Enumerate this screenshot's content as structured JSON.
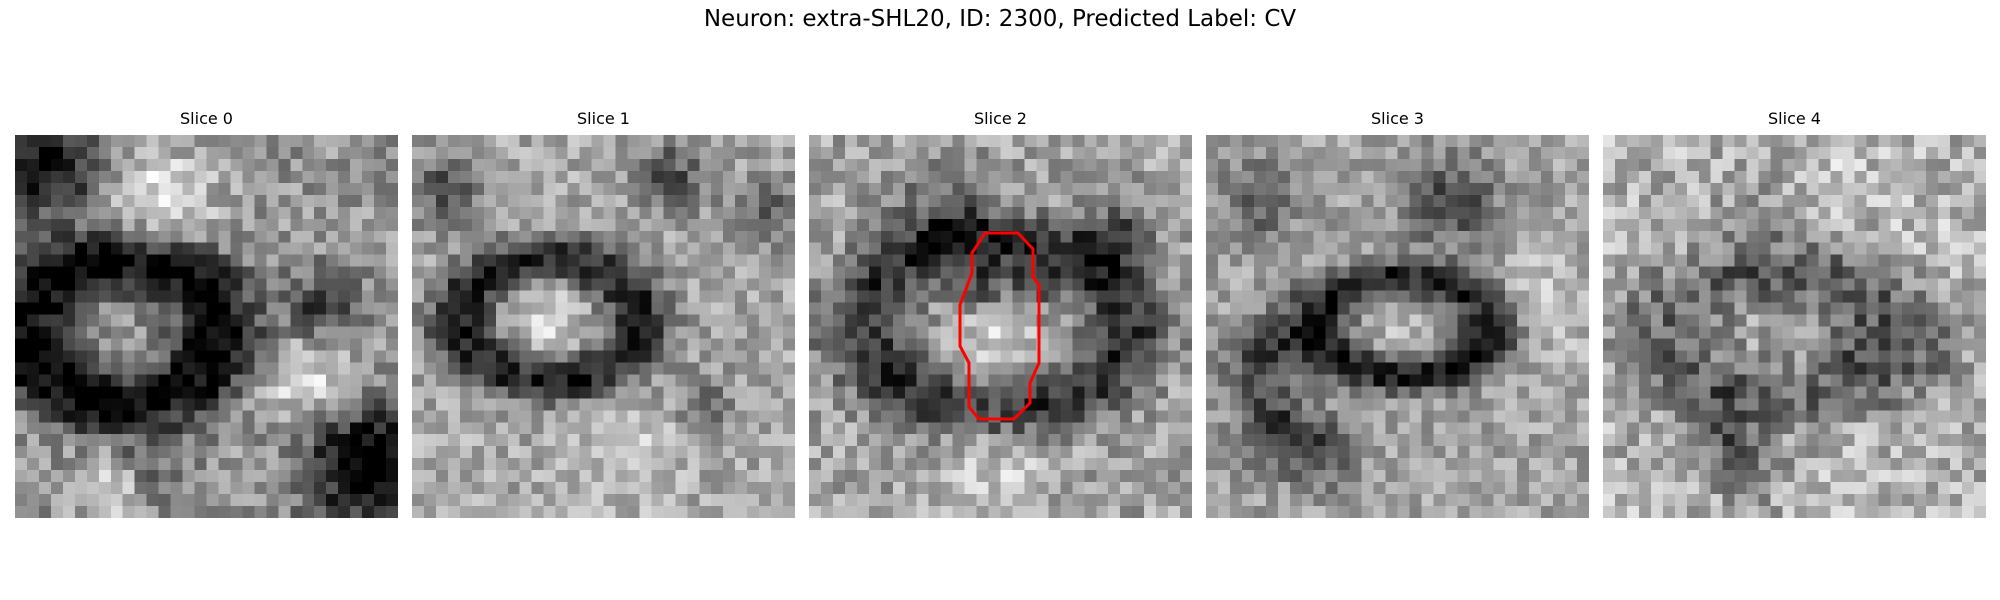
{
  "figure": {
    "title": "Neuron: extra-SHL20, ID: 2300, Predicted Label: CV"
  },
  "slices": [
    {
      "label": "Slice 0"
    },
    {
      "label": "Slice 1"
    },
    {
      "label": "Slice 2"
    },
    {
      "label": "Slice 3"
    },
    {
      "label": "Slice 4"
    }
  ],
  "contour": {
    "slice_index": 2,
    "color": "#ff0000"
  },
  "colors": {
    "background": "#ffffff",
    "image_colormap": "grayscale"
  }
}
